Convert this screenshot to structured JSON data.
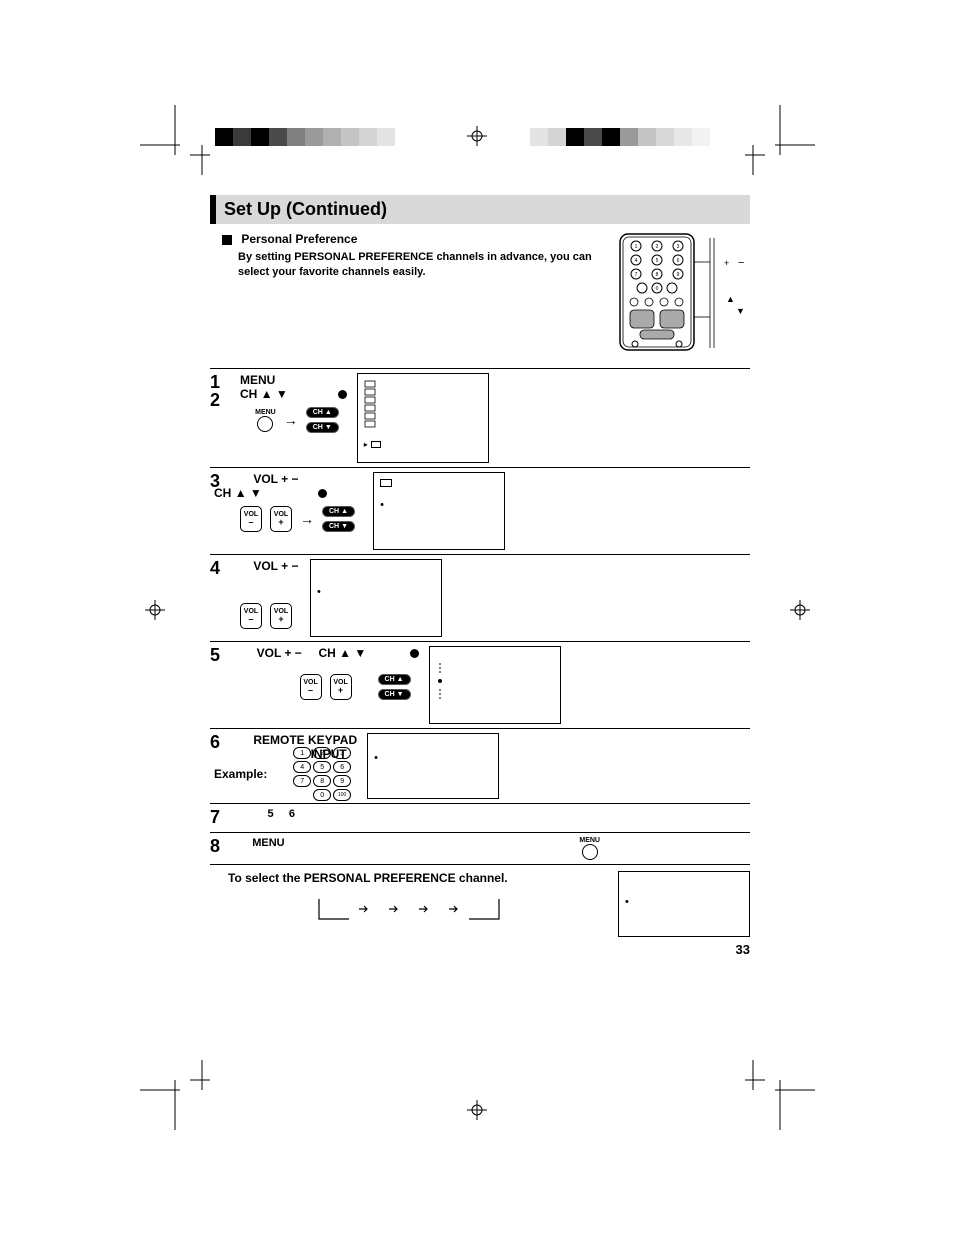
{
  "page": {
    "title": "Set Up (Continued)",
    "page_number": "33"
  },
  "intro": {
    "heading": "Personal Preference",
    "body": "By setting PERSONAL PREFERENCE channels in advance, you can select your favorite channels easily."
  },
  "remote_annotations": {
    "plus": "+",
    "minus": "−",
    "up": "▲",
    "down": "▼"
  },
  "buttons": {
    "menu": "MENU",
    "ch_up": "CH",
    "ch_down": "CH",
    "vol": "VOL",
    "plus": "+",
    "minus": "–",
    "arrow": "→"
  },
  "steps": {
    "s1": {
      "num": "1",
      "label": "MENU"
    },
    "s2": {
      "num": "2",
      "prefix": "CH",
      "tri": "▲ ▼"
    },
    "s3": {
      "num": "3",
      "label": "VOL  +  −",
      "sub_prefix": "CH",
      "sub_tri": "▲ ▼"
    },
    "s4": {
      "num": "4",
      "label": "VOL  +  −"
    },
    "s5": {
      "num": "5",
      "label1": "VOL  +  −",
      "label2_prefix": "CH",
      "label2_tri": "▲ ▼"
    },
    "s6": {
      "num": "6",
      "label": "REMOTE KEYPAD",
      "input": "INPUT",
      "example": "Example:"
    },
    "s7": {
      "num": "7",
      "a": "5",
      "b": "6"
    },
    "s8": {
      "num": "8",
      "label": "MENU"
    }
  },
  "keypad": [
    "1",
    "2",
    "3",
    "4",
    "5",
    "6",
    "7",
    "8",
    "9",
    "0",
    "100"
  ],
  "final": {
    "heading": "To select the PERSONAL PREFERENCE channel."
  },
  "reg_colors_left": [
    "#000000",
    "#3a3a3a",
    "#000000",
    "#4a4a4a",
    "#808080",
    "#9a9a9a",
    "#b0b0b0",
    "#c4c4c4",
    "#d4d4d4",
    "#e4e4e4"
  ],
  "reg_colors_right": [
    "#e4e4e4",
    "#d4d4d4",
    "#000000",
    "#4a4a4a",
    "#000000",
    "#9a9a9a",
    "#c4c4c4",
    "#d8d8d8",
    "#e8e8e8",
    "#f2f2f2"
  ]
}
